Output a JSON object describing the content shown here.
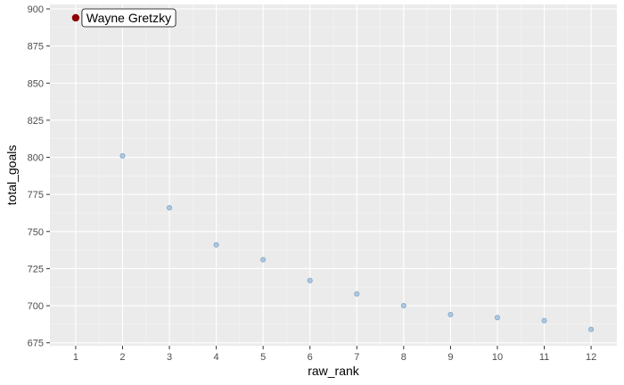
{
  "chart_data": {
    "type": "scatter",
    "title": "",
    "xlabel": "raw_rank",
    "ylabel": "total_goals",
    "xlim": [
      0.45,
      12.55
    ],
    "ylim": [
      673,
      903
    ],
    "x_ticks": [
      1,
      2,
      3,
      4,
      5,
      6,
      7,
      8,
      9,
      10,
      11,
      12
    ],
    "y_ticks": [
      675,
      700,
      725,
      750,
      775,
      800,
      825,
      850,
      875,
      900
    ],
    "grid": true,
    "legend": "none",
    "points": [
      {
        "x": 2,
        "y": 801
      },
      {
        "x": 3,
        "y": 766
      },
      {
        "x": 4,
        "y": 741
      },
      {
        "x": 5,
        "y": 731
      },
      {
        "x": 6,
        "y": 717
      },
      {
        "x": 7,
        "y": 708
      },
      {
        "x": 8,
        "y": 700
      },
      {
        "x": 9,
        "y": 694
      },
      {
        "x": 10,
        "y": 692
      },
      {
        "x": 11,
        "y": 690
      },
      {
        "x": 12,
        "y": 684
      }
    ],
    "highlight": {
      "x": 1,
      "y": 894,
      "label": "Wayne Gretzky"
    },
    "colors": {
      "panel": "#ebebeb",
      "grid_major": "#ffffff",
      "grid_minor": "#f5f5f5",
      "point_fill": "#a6c4de",
      "point_stroke": "#7fa6c8",
      "highlight": "#8b0000"
    }
  }
}
